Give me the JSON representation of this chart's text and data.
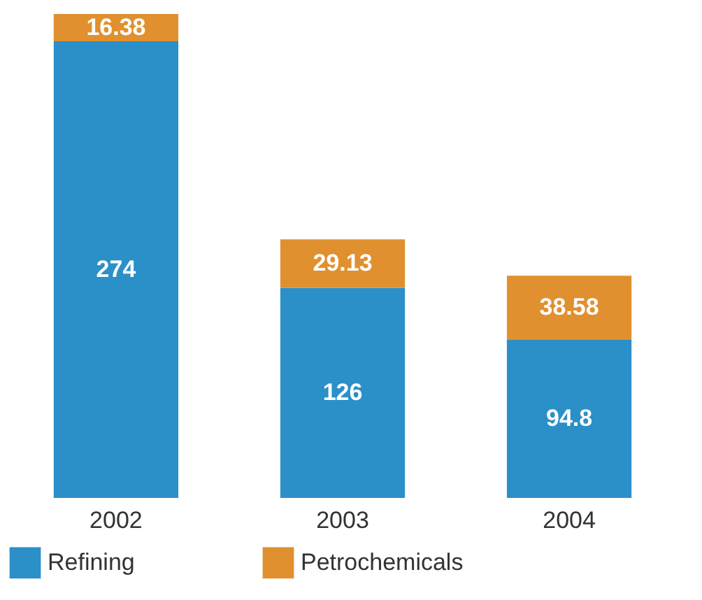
{
  "chart_data": {
    "type": "bar",
    "stacked": true,
    "categories": [
      "2002",
      "2003",
      "2004"
    ],
    "series": [
      {
        "name": "Refining",
        "color": "#2b8fc8",
        "values": [
          274,
          126,
          94.8
        ]
      },
      {
        "name": "Petrochemicals",
        "color": "#e0902e",
        "values": [
          16.38,
          29.13,
          38.58
        ]
      }
    ],
    "data_labels": true,
    "legend": "bottom"
  }
}
